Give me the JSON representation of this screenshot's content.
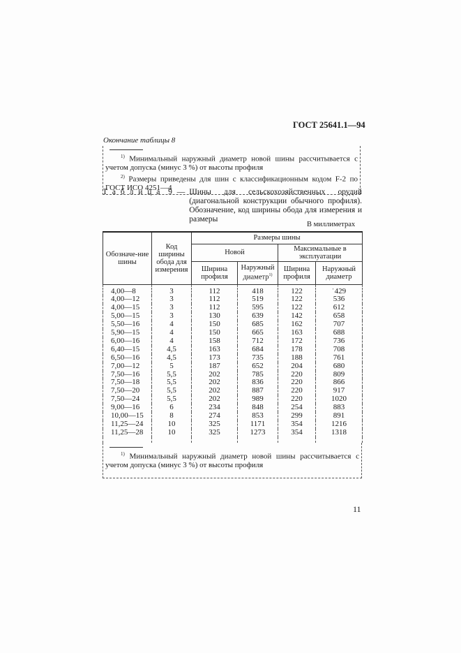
{
  "header": {
    "doc_code": "ГОСТ 25641.1—94"
  },
  "table8_end": {
    "label": "Окончание таблицы 8",
    "footnotes": [
      {
        "mark": "1)",
        "text": "Минимальный наружный диаметр новой шины рассчитывается с учетом допуска (минус 3 %) от высоты профиля"
      },
      {
        "mark": "2)",
        "text": "Размеры приведены для шин с классификационным кодом F-2 по ГОСТ ИСО 4251—4"
      }
    ]
  },
  "table9": {
    "label": "Т а б л и ц а  9 —",
    "caption": "Шины для сельскохозяйственных орудий (диагональной конструкции обычного профиля). Обозначение, код ширины обода для измерения и размеры",
    "units": "В миллиметрах",
    "headers": {
      "designation": "Обозначе-ние шины",
      "rim_code": "Код ширины обода для измерения",
      "sizes": "Размеры шины",
      "new": "Новой",
      "max_service": "Максимальные в эксплуатации",
      "width_new": "Ширина профиля",
      "diam_new": "Наружный диаметр",
      "diam_new_mark": "1)",
      "width_max": "Ширина профиля",
      "diam_max": "Наружный диаметр"
    },
    "rows": [
      [
        "4,00—8",
        "3",
        "112",
        "418",
        "122",
        "ˈ429"
      ],
      [
        "4,00—12",
        "3",
        "112",
        "519",
        "122",
        "536"
      ],
      [
        "4,00—15",
        "3",
        "112",
        "595",
        "122",
        "612"
      ],
      [
        "5,00—15",
        "3",
        "130",
        "639",
        "142",
        "658"
      ],
      [
        "5,50—16",
        "4",
        "150",
        "685",
        "162",
        "707"
      ],
      [
        "5,90—15",
        "4",
        "150",
        "665",
        "163",
        "688"
      ],
      [
        "6,00—16",
        "4",
        "158",
        "712",
        "172",
        "736"
      ],
      [
        "6,40—15",
        "4,5",
        "163",
        "684",
        "178",
        "708"
      ],
      [
        "6,50—16",
        "4,5",
        "173",
        "735",
        "188",
        "761"
      ],
      [
        "7,00—12",
        "5",
        "187",
        "652",
        "204",
        "680"
      ],
      [
        "7,50—16",
        "5,5",
        "202",
        "785",
        "220",
        "809"
      ],
      [
        "7,50—18",
        "5,5",
        "202",
        "836",
        "220",
        "866"
      ],
      [
        "7,50—20",
        "5,5",
        "202",
        "887",
        "220",
        "917"
      ],
      [
        "7,50—24",
        "5,5",
        "202",
        "989",
        "220",
        "1020"
      ],
      [
        "9,00—16",
        "6",
        "234",
        "848",
        "254",
        "883"
      ],
      [
        "10,00—15",
        "8",
        "274",
        "853",
        "299",
        "891"
      ],
      [
        "11,25—24",
        "10",
        "325",
        "1171",
        "354",
        "1216"
      ],
      [
        "11,25—28",
        "10",
        "325",
        "1273",
        "354",
        "1318"
      ]
    ],
    "footnote": {
      "mark": "1)",
      "text": "Минимальный наружный диаметр новой шины рассчитывается с учетом допуска (минус 3 %) от высоты профиля"
    }
  },
  "page_number": "11"
}
